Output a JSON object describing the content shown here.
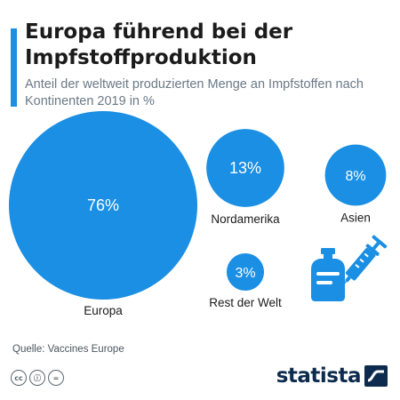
{
  "header": {
    "title": "Europa führend bei der Impfstoffproduktion",
    "subtitle": "Anteil der weltweit produzierten Menge an Impfstoffen nach Kontinenten 2019 in %"
  },
  "chart_data": {
    "type": "bubble",
    "unit": "%",
    "categories": [
      "Europa",
      "Nordamerika",
      "Asien",
      "Rest der Welt"
    ],
    "values": [
      76,
      13,
      8,
      3
    ],
    "value_labels": [
      "76%",
      "13%",
      "8%",
      "3%"
    ],
    "color": "#1a8fe3"
  },
  "illustration": {
    "icon": "vaccine-vial-syringe-icon",
    "color": "#1a8fe3"
  },
  "footer": {
    "source": "Quelle: Vaccines Europe",
    "license_icons": [
      "cc-icon",
      "by-icon",
      "nd-icon"
    ],
    "license_glyphs": [
      "cc",
      "ⓘ",
      "="
    ],
    "brand": "statista"
  }
}
